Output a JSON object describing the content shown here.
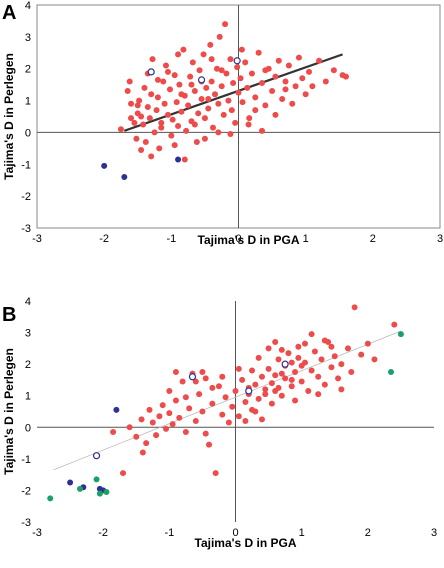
{
  "chart_data": [
    {
      "type": "scatter",
      "panel_label": "A",
      "xlabel": "Tajima's D in PGA",
      "ylabel": "Tajima's D in Perlegen",
      "xlim": [
        -3,
        3
      ],
      "ylim": [
        -3,
        4
      ],
      "xticks": [
        "-3",
        "-2",
        "-1",
        "0",
        "1",
        "2",
        "3"
      ],
      "yticks": [
        "-3",
        "-2",
        "-1",
        "0",
        "1",
        "2",
        "3",
        "4"
      ],
      "frame": true,
      "trendline": {
        "x": [
          -1.7,
          1.55
        ],
        "y": [
          0.05,
          2.45
        ],
        "color": "#333333",
        "style": "thick"
      },
      "colors": {
        "red": "#ee4b4b",
        "navy": "#2e3192",
        "open": "#2e3192"
      },
      "series": [
        {
          "marker": "filled-red",
          "points": [
            [
              -1.75,
              0.1
            ],
            [
              -1.65,
              1.3
            ],
            [
              -1.62,
              1.6
            ],
            [
              -1.6,
              0.9
            ],
            [
              -1.55,
              0.3
            ],
            [
              -1.52,
              -0.2
            ],
            [
              -1.5,
              0.6
            ],
            [
              -1.48,
              1.0
            ],
            [
              -1.45,
              0.5
            ],
            [
              -1.42,
              0.25
            ],
            [
              -1.4,
              1.4
            ],
            [
              -1.38,
              -0.3
            ],
            [
              -1.35,
              0.8
            ],
            [
              -1.32,
              0.45
            ],
            [
              -1.3,
              1.2
            ],
            [
              -1.28,
              2.3
            ],
            [
              -1.25,
              0.0
            ],
            [
              -1.22,
              0.7
            ],
            [
              -1.2,
              1.1
            ],
            [
              -1.18,
              -0.5
            ],
            [
              -1.15,
              0.3
            ],
            [
              -1.12,
              1.6
            ],
            [
              -1.1,
              0.9
            ],
            [
              -1.08,
              2.1
            ],
            [
              -1.05,
              0.55
            ],
            [
              -1.02,
              1.35
            ],
            [
              -1.0,
              -0.1
            ],
            [
              -0.98,
              0.4
            ],
            [
              -0.95,
              1.8
            ],
            [
              -0.92,
              0.95
            ],
            [
              -0.9,
              0.2
            ],
            [
              -0.88,
              1.5
            ],
            [
              -0.85,
              0.65
            ],
            [
              -0.82,
              2.6
            ],
            [
              -0.8,
              1.15
            ],
            [
              -0.78,
              0.05
            ],
            [
              -0.75,
              0.85
            ],
            [
              -0.72,
              1.75
            ],
            [
              -0.7,
              0.35
            ],
            [
              -0.68,
              2.2
            ],
            [
              -0.65,
              1.3
            ],
            [
              -0.62,
              -0.3
            ],
            [
              -0.6,
              0.6
            ],
            [
              -0.58,
              1.95
            ],
            [
              -0.55,
              1.05
            ],
            [
              -0.52,
              2.45
            ],
            [
              -0.5,
              0.45
            ],
            [
              -0.48,
              1.4
            ],
            [
              -0.45,
              0.75
            ],
            [
              -0.42,
              2.75
            ],
            [
              -0.4,
              1.6
            ],
            [
              -0.38,
              0.15
            ],
            [
              -0.35,
              1.2
            ],
            [
              -0.32,
              2.0
            ],
            [
              -0.3,
              0.9
            ],
            [
              -0.28,
              3.0
            ],
            [
              -0.25,
              1.45
            ],
            [
              -0.22,
              0.55
            ],
            [
              -0.2,
              3.4
            ],
            [
              -0.18,
              1.85
            ],
            [
              -0.15,
              1.0
            ],
            [
              -0.12,
              2.3
            ],
            [
              -0.1,
              0.7
            ],
            [
              -0.08,
              1.55
            ],
            [
              -0.05,
              0.3
            ],
            [
              -0.02,
              2.05
            ],
            [
              0.0,
              1.25
            ],
            [
              0.03,
              1.7
            ],
            [
              0.06,
              0.95
            ],
            [
              0.1,
              2.2
            ],
            [
              0.13,
              1.4
            ],
            [
              0.16,
              0.45
            ],
            [
              0.2,
              1.85
            ],
            [
              0.25,
              1.1
            ],
            [
              0.3,
              2.5
            ],
            [
              0.35,
              1.55
            ],
            [
              0.4,
              0.85
            ],
            [
              0.45,
              2.0
            ],
            [
              0.5,
              1.3
            ],
            [
              0.55,
              1.75
            ],
            [
              0.6,
              2.25
            ],
            [
              0.65,
              1.05
            ],
            [
              0.7,
              1.6
            ],
            [
              0.75,
              2.1
            ],
            [
              0.8,
              0.9
            ],
            [
              0.85,
              1.45
            ],
            [
              0.9,
              2.35
            ],
            [
              0.95,
              1.7
            ],
            [
              1.0,
              1.2
            ],
            [
              1.05,
              1.9
            ],
            [
              1.1,
              1.45
            ],
            [
              1.2,
              2.25
            ],
            [
              1.3,
              1.6
            ],
            [
              1.42,
              1.95
            ],
            [
              1.55,
              1.8
            ],
            [
              1.6,
              1.75
            ],
            [
              -1.6,
              0.45
            ],
            [
              -1.45,
              -0.55
            ],
            [
              -1.3,
              -0.75
            ],
            [
              -1.15,
              0.15
            ],
            [
              -0.95,
              -0.4
            ],
            [
              -0.8,
              -0.85
            ],
            [
              -0.65,
              0.25
            ],
            [
              -0.5,
              -0.2
            ],
            [
              -0.3,
              0.0
            ],
            [
              -0.12,
              -0.05
            ],
            [
              0.15,
              0.25
            ],
            [
              0.35,
              0.05
            ],
            [
              -0.7,
              1.5
            ],
            [
              -0.4,
              2.3
            ],
            [
              -0.9,
              2.45
            ],
            [
              -1.05,
              1.9
            ],
            [
              -0.55,
              1.6
            ],
            [
              -0.25,
              1.95
            ],
            [
              0.05,
              2.6
            ],
            [
              0.4,
              1.95
            ],
            [
              0.7,
              1.35
            ],
            [
              -1.2,
              1.65
            ],
            [
              -0.85,
              1.2
            ],
            [
              -0.45,
              1.05
            ],
            [
              0.25,
              0.7
            ],
            [
              0.55,
              0.55
            ],
            [
              -1.5,
              0.85
            ],
            [
              -1.35,
              1.85
            ]
          ]
        },
        {
          "marker": "filled-navy",
          "points": [
            [
              -2.0,
              -1.05
            ],
            [
              -1.7,
              -1.4
            ],
            [
              -0.9,
              -0.85
            ]
          ]
        },
        {
          "marker": "open-navy",
          "points": [
            [
              -1.3,
              1.9
            ],
            [
              -0.55,
              1.65
            ],
            [
              -0.02,
              2.25
            ]
          ]
        }
      ]
    },
    {
      "type": "scatter",
      "panel_label": "B",
      "xlabel": "Tajima's D in PGA",
      "ylabel": "Tajima's D in Perlegen",
      "xlim": [
        -3,
        3
      ],
      "ylim": [
        -3,
        4
      ],
      "xticks": [
        "-3",
        "-2",
        "-1",
        "0",
        "1",
        "2",
        "3"
      ],
      "yticks": [
        "-3",
        "-2",
        "-1",
        "0",
        "1",
        "2",
        "3",
        "4"
      ],
      "frame": false,
      "trendline": {
        "x": [
          -2.75,
          2.5
        ],
        "y": [
          -1.35,
          3.05
        ],
        "color": "#bbbbbb",
        "style": "thin"
      },
      "colors": {
        "red": "#ee4b4b",
        "navy": "#2e3192",
        "green": "#1aa068",
        "open": "#2e3192"
      },
      "series": [
        {
          "marker": "filled-red",
          "points": [
            [
              -1.85,
              -0.15
            ],
            [
              -1.7,
              -1.45
            ],
            [
              -1.6,
              0.0
            ],
            [
              -1.5,
              -0.3
            ],
            [
              -1.42,
              0.25
            ],
            [
              -1.35,
              -0.5
            ],
            [
              -1.3,
              0.55
            ],
            [
              -1.25,
              0.15
            ],
            [
              -1.2,
              -0.25
            ],
            [
              -1.15,
              0.35
            ],
            [
              -1.1,
              0.7
            ],
            [
              -1.05,
              -0.05
            ],
            [
              -1.0,
              0.45
            ],
            [
              -0.95,
              0.1
            ],
            [
              -0.9,
              0.85
            ],
            [
              -0.85,
              0.3
            ],
            [
              -0.8,
              1.45
            ],
            [
              -0.75,
              -0.15
            ],
            [
              -0.7,
              0.6
            ],
            [
              -0.65,
              1.7
            ],
            [
              -0.6,
              0.2
            ],
            [
              -0.55,
              1.05
            ],
            [
              -0.5,
              0.5
            ],
            [
              -0.45,
              1.55
            ],
            [
              -0.4,
              -0.55
            ],
            [
              -0.35,
              0.75
            ],
            [
              -0.3,
              -1.45
            ],
            [
              -0.25,
              1.3
            ],
            [
              -0.2,
              0.4
            ],
            [
              -0.15,
              0.95
            ],
            [
              -0.1,
              0.15
            ],
            [
              -0.05,
              0.65
            ],
            [
              0.0,
              1.15
            ],
            [
              0.05,
              0.35
            ],
            [
              0.1,
              1.5
            ],
            [
              0.15,
              0.8
            ],
            [
              0.2,
              1.05
            ],
            [
              0.25,
              0.55
            ],
            [
              0.3,
              1.35
            ],
            [
              0.35,
              0.9
            ],
            [
              0.4,
              1.6
            ],
            [
              0.45,
              1.2
            ],
            [
              0.5,
              1.85
            ],
            [
              0.55,
              1.4
            ],
            [
              0.6,
              1.65
            ],
            [
              0.65,
              2.15
            ],
            [
              0.7,
              1.0
            ],
            [
              0.75,
              1.55
            ],
            [
              0.8,
              2.35
            ],
            [
              0.85,
              1.3
            ],
            [
              0.9,
              1.75
            ],
            [
              0.95,
              2.55
            ],
            [
              1.0,
              1.45
            ],
            [
              1.05,
              2.05
            ],
            [
              1.1,
              1.15
            ],
            [
              1.15,
              1.8
            ],
            [
              1.2,
              2.4
            ],
            [
              1.25,
              1.6
            ],
            [
              1.3,
              2.15
            ],
            [
              1.35,
              1.35
            ],
            [
              1.4,
              2.7
            ],
            [
              1.45,
              1.9
            ],
            [
              1.5,
              2.25
            ],
            [
              1.55,
              1.55
            ],
            [
              1.6,
              2.0
            ],
            [
              1.7,
              2.5
            ],
            [
              1.8,
              3.8
            ],
            [
              1.9,
              2.3
            ],
            [
              2.0,
              2.65
            ],
            [
              2.1,
              2.15
            ],
            [
              2.4,
              3.25
            ],
            [
              -0.5,
              1.75
            ],
            [
              -0.6,
              1.45
            ],
            [
              0.25,
              1.8
            ],
            [
              0.35,
              2.2
            ],
            [
              0.5,
              2.5
            ],
            [
              0.6,
              2.7
            ],
            [
              0.7,
              2.45
            ],
            [
              0.85,
              2.05
            ],
            [
              0.95,
              2.2
            ],
            [
              1.05,
              2.65
            ],
            [
              1.15,
              2.95
            ],
            [
              0.45,
              1.05
            ],
            [
              0.55,
              0.75
            ],
            [
              0.65,
              1.25
            ],
            [
              0.75,
              1.95
            ],
            [
              -0.9,
              1.75
            ],
            [
              -1.0,
              1.15
            ],
            [
              -0.75,
              0.95
            ],
            [
              0.15,
              0.2
            ],
            [
              0.3,
              0.5
            ],
            [
              0.4,
              0.25
            ],
            [
              -0.2,
              1.6
            ],
            [
              0.05,
              1.85
            ],
            [
              1.25,
              1.05
            ],
            [
              1.6,
              1.2
            ],
            [
              0.9,
              0.85
            ],
            [
              1.35,
              2.75
            ],
            [
              1.45,
              2.55
            ],
            [
              -1.4,
              -0.8
            ],
            [
              -0.45,
              -0.2
            ],
            [
              0.2,
              1.25
            ],
            [
              0.7,
              1.7
            ],
            [
              1.0,
              1.95
            ],
            [
              0.85,
              1.5
            ],
            [
              -0.35,
              1.25
            ],
            [
              0.6,
              1.15
            ],
            [
              1.75,
              1.75
            ]
          ]
        },
        {
          "marker": "filled-navy",
          "points": [
            [
              -2.5,
              -1.75
            ],
            [
              -2.3,
              -1.9
            ],
            [
              -2.05,
              -1.95
            ],
            [
              -2.0,
              -2.0
            ],
            [
              -1.8,
              0.55
            ]
          ]
        },
        {
          "marker": "filled-green",
          "points": [
            [
              -2.8,
              -2.25
            ],
            [
              -2.35,
              -1.95
            ],
            [
              -2.1,
              -1.65
            ],
            [
              -2.05,
              -2.1
            ],
            [
              -1.95,
              -2.05
            ],
            [
              2.35,
              1.75
            ],
            [
              2.5,
              2.95
            ]
          ]
        },
        {
          "marker": "open-navy",
          "points": [
            [
              -2.1,
              -0.9
            ],
            [
              -0.65,
              1.6
            ],
            [
              0.2,
              1.15
            ],
            [
              0.75,
              2.0
            ]
          ]
        }
      ]
    }
  ]
}
